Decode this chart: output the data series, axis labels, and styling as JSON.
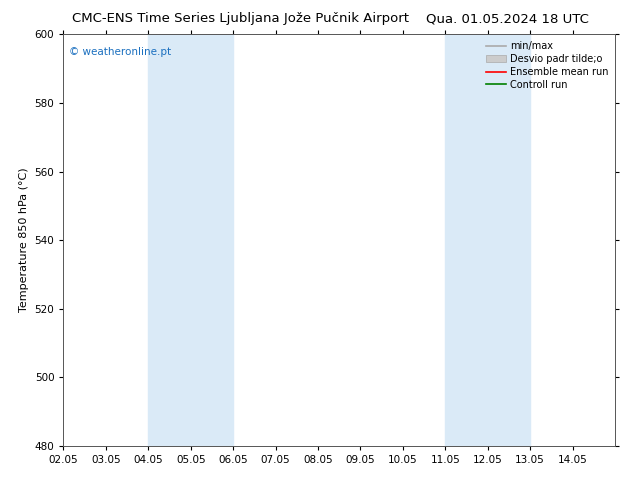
{
  "title_left": "CMC-ENS Time Series Ljubljana Jože Pučnik Airport",
  "title_right": "Qua. 01.05.2024 18 UTC",
  "ylabel": "Temperature 850 hPa (°C)",
  "ylim": [
    480,
    600
  ],
  "yticks": [
    480,
    500,
    520,
    540,
    560,
    580,
    600
  ],
  "xlim": [
    0,
    13
  ],
  "xtick_labels": [
    "02.05",
    "03.05",
    "04.05",
    "05.05",
    "06.05",
    "07.05",
    "08.05",
    "09.05",
    "10.05",
    "11.05",
    "12.05",
    "13.05",
    "14.05"
  ],
  "xtick_positions": [
    0,
    1,
    2,
    3,
    4,
    5,
    6,
    7,
    8,
    9,
    10,
    11,
    12
  ],
  "shaded_bands": [
    {
      "xmin": 2.0,
      "xmax": 4.0,
      "color": "#daeaf7"
    },
    {
      "xmin": 9.0,
      "xmax": 11.0,
      "color": "#daeaf7"
    }
  ],
  "watermark": "© weatheronline.pt",
  "watermark_color": "#1a6fbf",
  "legend_entries": [
    {
      "label": "min/max",
      "color": "#aaaaaa",
      "lw": 1.2,
      "type": "line"
    },
    {
      "label": "Desvio padr tilde;o",
      "color": "#cccccc",
      "edgecolor": "#aaaaaa",
      "type": "fill"
    },
    {
      "label": "Ensemble mean run",
      "color": "#ff0000",
      "lw": 1.2,
      "type": "line"
    },
    {
      "label": "Controll run",
      "color": "#008000",
      "lw": 1.2,
      "type": "line"
    }
  ],
  "bg_color": "#ffffff",
  "plot_bg_color": "#ffffff",
  "title_fontsize": 9.5,
  "tick_fontsize": 7.5,
  "ylabel_fontsize": 8,
  "watermark_fontsize": 7.5,
  "legend_fontsize": 7
}
